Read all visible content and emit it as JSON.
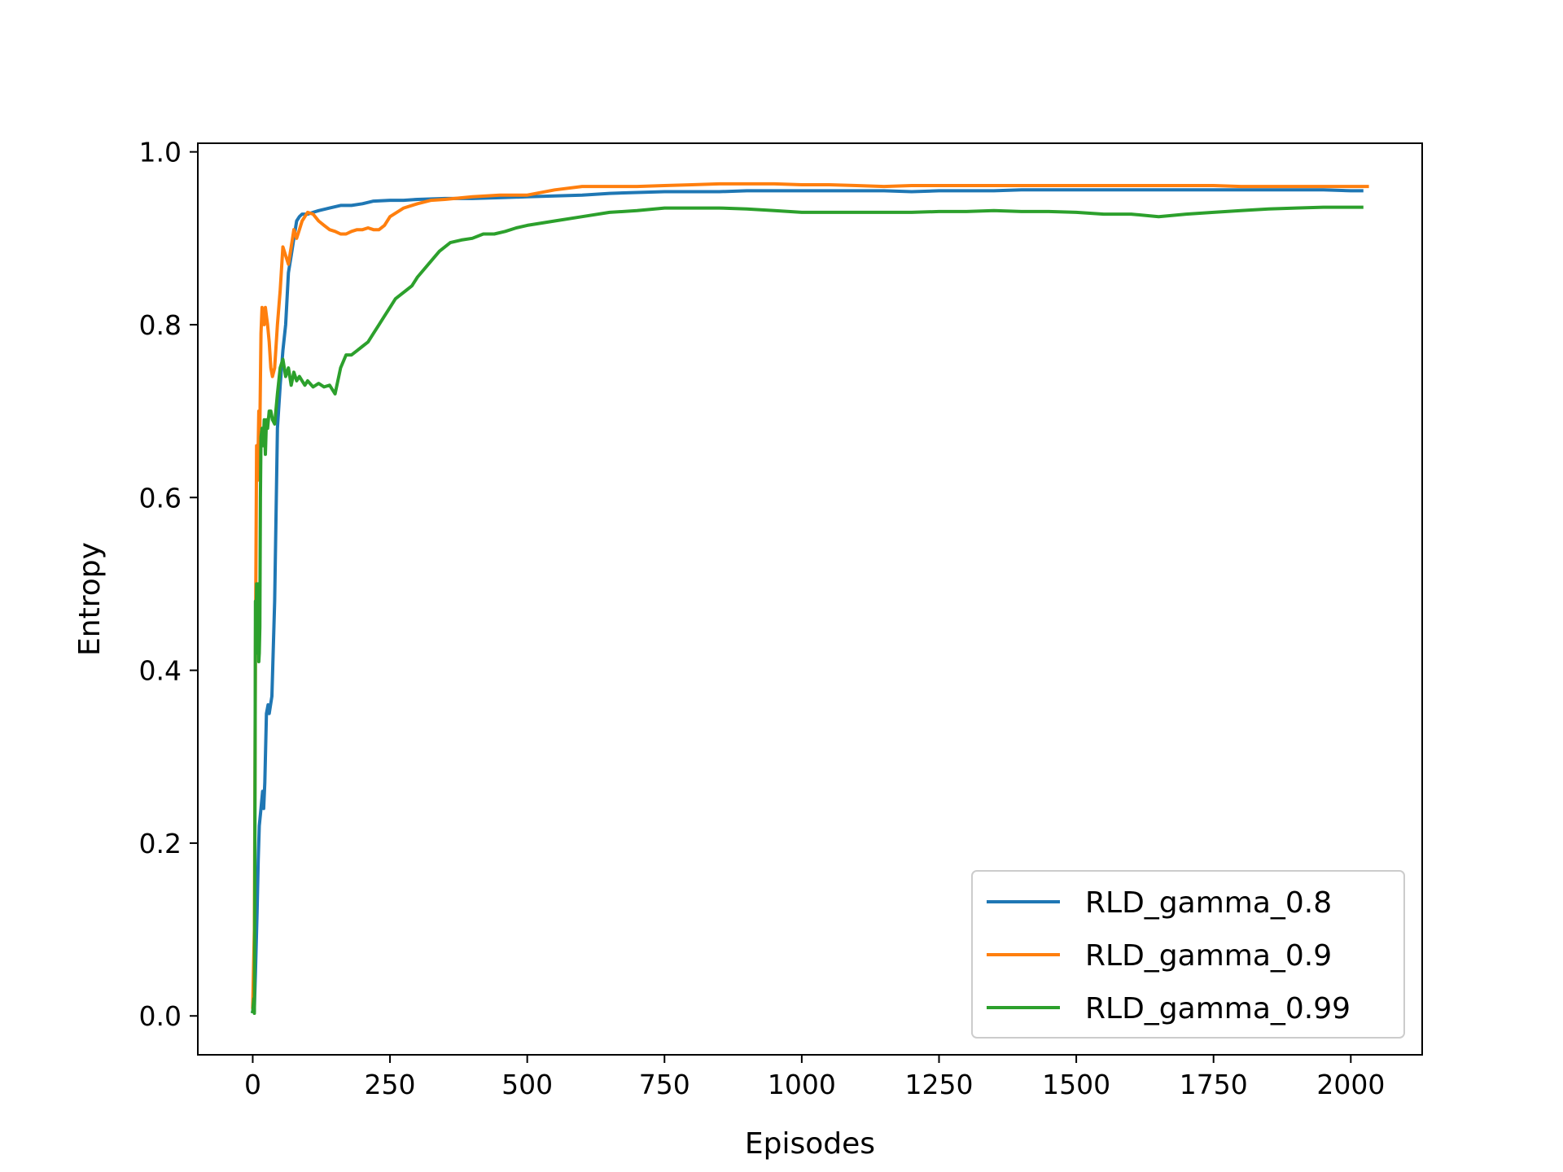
{
  "chart_data": {
    "type": "line",
    "title": "",
    "xlabel": "Episodes",
    "ylabel": "Entropy",
    "xlim": [
      -100,
      2130
    ],
    "ylim": [
      -0.045,
      1.01
    ],
    "xticks": [
      0,
      250,
      500,
      750,
      1000,
      1250,
      1500,
      1750,
      2000
    ],
    "yticks": [
      0.0,
      0.2,
      0.4,
      0.6,
      0.8,
      1.0
    ],
    "xtick_labels": [
      "0",
      "250",
      "500",
      "750",
      "1000",
      "1250",
      "1500",
      "1750",
      "2000"
    ],
    "ytick_labels": [
      "0.0",
      "0.2",
      "0.4",
      "0.6",
      "0.8",
      "1.0"
    ],
    "grid": false,
    "legend_position": "lower-right",
    "series": [
      {
        "name": "RLD_gamma_0.8",
        "color": "#1f77b4",
        "x": [
          0,
          3,
          5,
          8,
          10,
          12,
          15,
          18,
          20,
          22,
          25,
          28,
          30,
          35,
          40,
          45,
          50,
          55,
          60,
          65,
          70,
          75,
          80,
          85,
          90,
          100,
          110,
          120,
          140,
          160,
          180,
          200,
          220,
          250,
          275,
          300,
          350,
          400,
          450,
          500,
          550,
          600,
          650,
          700,
          750,
          800,
          850,
          900,
          950,
          1000,
          1050,
          1100,
          1150,
          1200,
          1250,
          1300,
          1350,
          1400,
          1450,
          1500,
          1550,
          1600,
          1650,
          1700,
          1750,
          1800,
          1850,
          1900,
          1950,
          2000,
          2020
        ],
        "y": [
          0.005,
          0.01,
          0.05,
          0.12,
          0.18,
          0.22,
          0.24,
          0.26,
          0.24,
          0.27,
          0.35,
          0.36,
          0.35,
          0.37,
          0.48,
          0.68,
          0.73,
          0.77,
          0.8,
          0.86,
          0.88,
          0.9,
          0.92,
          0.925,
          0.928,
          0.928,
          0.93,
          0.932,
          0.935,
          0.938,
          0.938,
          0.94,
          0.943,
          0.944,
          0.944,
          0.945,
          0.946,
          0.946,
          0.947,
          0.948,
          0.949,
          0.95,
          0.952,
          0.953,
          0.954,
          0.954,
          0.954,
          0.955,
          0.955,
          0.955,
          0.955,
          0.955,
          0.955,
          0.954,
          0.955,
          0.955,
          0.955,
          0.956,
          0.956,
          0.956,
          0.956,
          0.956,
          0.956,
          0.956,
          0.956,
          0.956,
          0.956,
          0.956,
          0.956,
          0.955,
          0.955
        ]
      },
      {
        "name": "RLD_gamma_0.9",
        "color": "#ff7f0e",
        "x": [
          0,
          3,
          5,
          7,
          9,
          11,
          13,
          15,
          17,
          19,
          21,
          23,
          25,
          27,
          30,
          33,
          36,
          40,
          45,
          50,
          55,
          60,
          65,
          70,
          75,
          80,
          85,
          90,
          95,
          100,
          110,
          120,
          130,
          140,
          150,
          160,
          170,
          180,
          190,
          200,
          210,
          220,
          230,
          240,
          250,
          275,
          300,
          325,
          350,
          400,
          450,
          500,
          550,
          600,
          650,
          700,
          750,
          800,
          850,
          900,
          950,
          1000,
          1050,
          1100,
          1150,
          1200,
          1250,
          1300,
          1350,
          1400,
          1450,
          1500,
          1550,
          1600,
          1650,
          1700,
          1750,
          1800,
          1850,
          1900,
          1950,
          2000,
          2030
        ],
        "y": [
          0.01,
          0.1,
          0.42,
          0.66,
          0.62,
          0.7,
          0.68,
          0.79,
          0.82,
          0.815,
          0.8,
          0.82,
          0.81,
          0.8,
          0.78,
          0.75,
          0.74,
          0.75,
          0.8,
          0.84,
          0.89,
          0.88,
          0.87,
          0.89,
          0.91,
          0.9,
          0.91,
          0.92,
          0.925,
          0.93,
          0.928,
          0.92,
          0.915,
          0.91,
          0.908,
          0.905,
          0.905,
          0.908,
          0.91,
          0.91,
          0.912,
          0.91,
          0.91,
          0.915,
          0.925,
          0.935,
          0.94,
          0.944,
          0.945,
          0.948,
          0.95,
          0.95,
          0.956,
          0.96,
          0.96,
          0.96,
          0.961,
          0.962,
          0.963,
          0.963,
          0.963,
          0.962,
          0.962,
          0.961,
          0.96,
          0.961,
          0.961,
          0.961,
          0.961,
          0.961,
          0.961,
          0.961,
          0.961,
          0.961,
          0.961,
          0.961,
          0.961,
          0.96,
          0.96,
          0.96,
          0.96,
          0.96,
          0.96
        ]
      },
      {
        "name": "RLD_gamma_0.99",
        "color": "#2ca02c",
        "x": [
          0,
          2,
          3,
          4,
          5,
          6,
          7,
          8,
          9,
          10,
          11,
          12,
          13,
          14,
          15,
          17,
          19,
          21,
          23,
          25,
          27,
          30,
          33,
          36,
          40,
          45,
          50,
          55,
          60,
          65,
          70,
          75,
          80,
          85,
          90,
          95,
          100,
          110,
          120,
          130,
          140,
          150,
          160,
          170,
          180,
          190,
          200,
          210,
          220,
          230,
          240,
          250,
          260,
          270,
          280,
          290,
          300,
          320,
          340,
          360,
          380,
          400,
          420,
          440,
          460,
          480,
          500,
          550,
          600,
          650,
          700,
          750,
          800,
          850,
          900,
          950,
          1000,
          1050,
          1100,
          1150,
          1200,
          1250,
          1300,
          1350,
          1400,
          1450,
          1500,
          1550,
          1600,
          1650,
          1700,
          1750,
          1800,
          1850,
          1900,
          1950,
          2000,
          2020
        ],
        "y": [
          0.005,
          0.02,
          0.003,
          0.2,
          0.48,
          0.44,
          0.5,
          0.42,
          0.44,
          0.5,
          0.41,
          0.42,
          0.45,
          0.6,
          0.67,
          0.68,
          0.66,
          0.69,
          0.65,
          0.69,
          0.68,
          0.7,
          0.7,
          0.69,
          0.685,
          0.72,
          0.75,
          0.76,
          0.74,
          0.75,
          0.73,
          0.745,
          0.735,
          0.74,
          0.735,
          0.73,
          0.735,
          0.728,
          0.732,
          0.728,
          0.73,
          0.72,
          0.75,
          0.765,
          0.765,
          0.77,
          0.775,
          0.78,
          0.79,
          0.8,
          0.81,
          0.82,
          0.83,
          0.835,
          0.84,
          0.845,
          0.855,
          0.87,
          0.885,
          0.895,
          0.898,
          0.9,
          0.905,
          0.905,
          0.908,
          0.912,
          0.915,
          0.92,
          0.925,
          0.93,
          0.932,
          0.935,
          0.935,
          0.935,
          0.934,
          0.932,
          0.93,
          0.93,
          0.93,
          0.93,
          0.93,
          0.931,
          0.931,
          0.932,
          0.931,
          0.931,
          0.93,
          0.928,
          0.928,
          0.925,
          0.928,
          0.93,
          0.932,
          0.934,
          0.935,
          0.936,
          0.936,
          0.936
        ]
      }
    ]
  }
}
